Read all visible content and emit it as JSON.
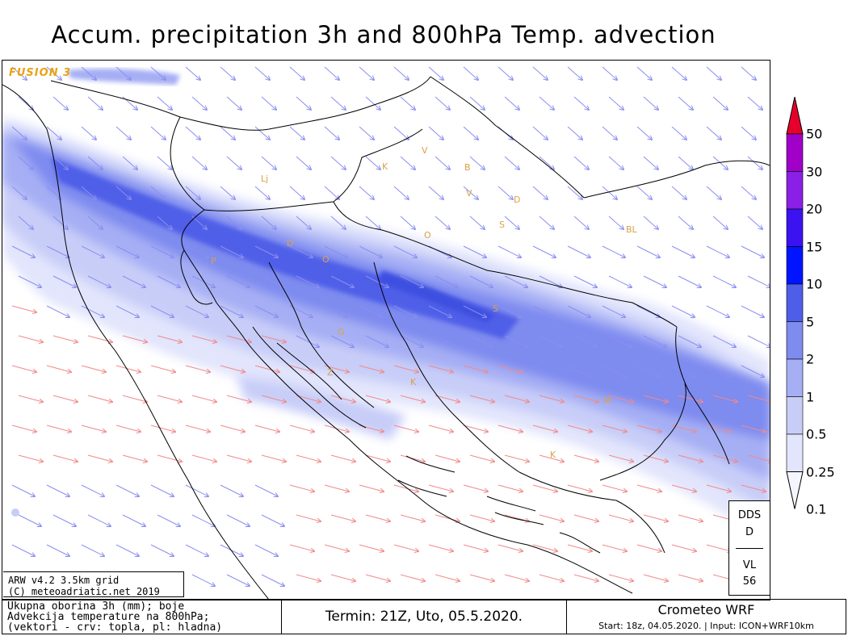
{
  "title": "Accum. precipitation 3h and 800hPa Temp. advection",
  "logo_text": "FUSION 3",
  "colorbar": {
    "levels": [
      "50",
      "30",
      "20",
      "15",
      "10",
      "5",
      "2",
      "1",
      "0.5",
      "0.25",
      "0.1"
    ],
    "colors": [
      "#e6002b",
      "#a000c8",
      "#8a1fe6",
      "#3b12f0",
      "#0014ff",
      "#4f5ee8",
      "#7e8bef",
      "#a6aff4",
      "#c8cdf8",
      "#e2e5fc",
      "#f4f5fe"
    ]
  },
  "city_labels": [
    "Lj",
    "P",
    "D",
    "G",
    "Z",
    "K",
    "V",
    "K",
    "B",
    "V",
    "D",
    "S",
    "O",
    "BL",
    "S",
    "M",
    "K",
    "O"
  ],
  "dds": {
    "line1": "DDS",
    "line2": "D",
    "line3": "VL",
    "line4": "56"
  },
  "model_info": {
    "line1": "ARW v4.2 3.5km grid",
    "line2": "(C) meteoadriatic.net 2019"
  },
  "legend_text": {
    "line1": "Ukupna oborina 3h (mm); boje",
    "line2": "Advekcija temperature na 800hPa;",
    "line3": "(vektori - crv: topla, pl: hladna)"
  },
  "termin": "Termin: 21Z, Uto, 05.5.2020.",
  "brand": "Crometeo WRF",
  "start_info": "Start: 18z, 04.05.2020. | Input: ICON+WRF10km",
  "vector_colors": {
    "warm": "#f08a8a",
    "cold": "#8a8ef0"
  }
}
